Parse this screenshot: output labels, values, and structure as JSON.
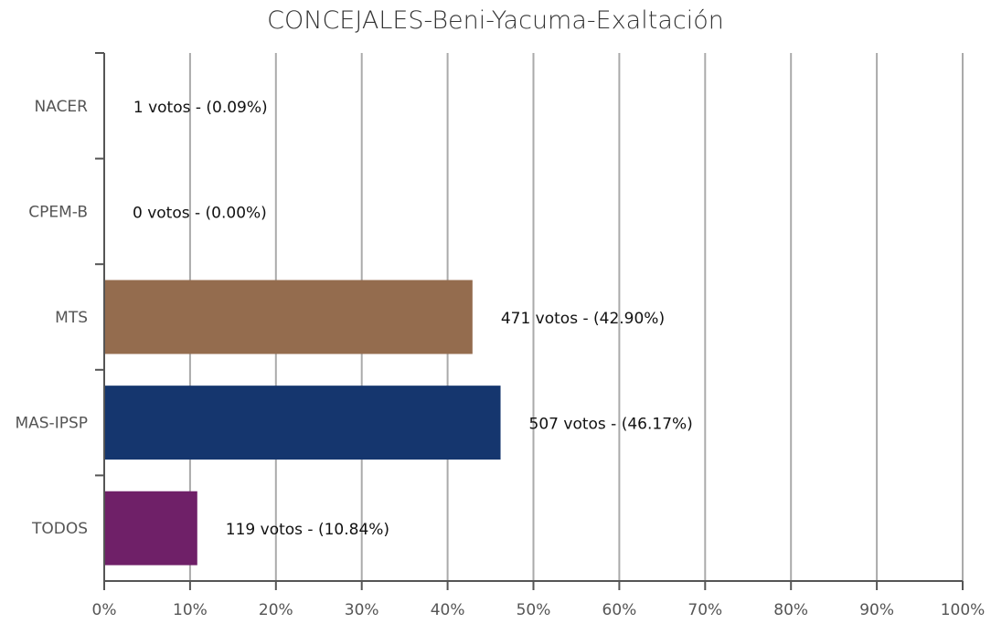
{
  "chart_data": {
    "type": "bar",
    "orientation": "horizontal",
    "title": "CONCEJALES-Beni-Yacuma-Exaltación",
    "categories": [
      "NACER",
      "CPEM-B",
      "MTS",
      "MAS-IPSP",
      "TODOS"
    ],
    "values": [
      0.09,
      0.0,
      42.9,
      46.17,
      10.84
    ],
    "votes": [
      1,
      0,
      471,
      507,
      119
    ],
    "data_labels": [
      "1 votos - (0.09%)",
      "0 votos - (0.00%)",
      "471 votos - (42.90%)",
      "507 votos - (46.17%)",
      "119 votos - (10.84%)"
    ],
    "colors": [
      "#888888",
      "#888888",
      "#946c4e",
      "#15366e",
      "#6f2068"
    ],
    "xlim": [
      0,
      100
    ],
    "x_ticks": [
      "0%",
      "10%",
      "20%",
      "30%",
      "40%",
      "50%",
      "60%",
      "70%",
      "80%",
      "90%",
      "100%"
    ],
    "grid": true,
    "legend": "none"
  }
}
